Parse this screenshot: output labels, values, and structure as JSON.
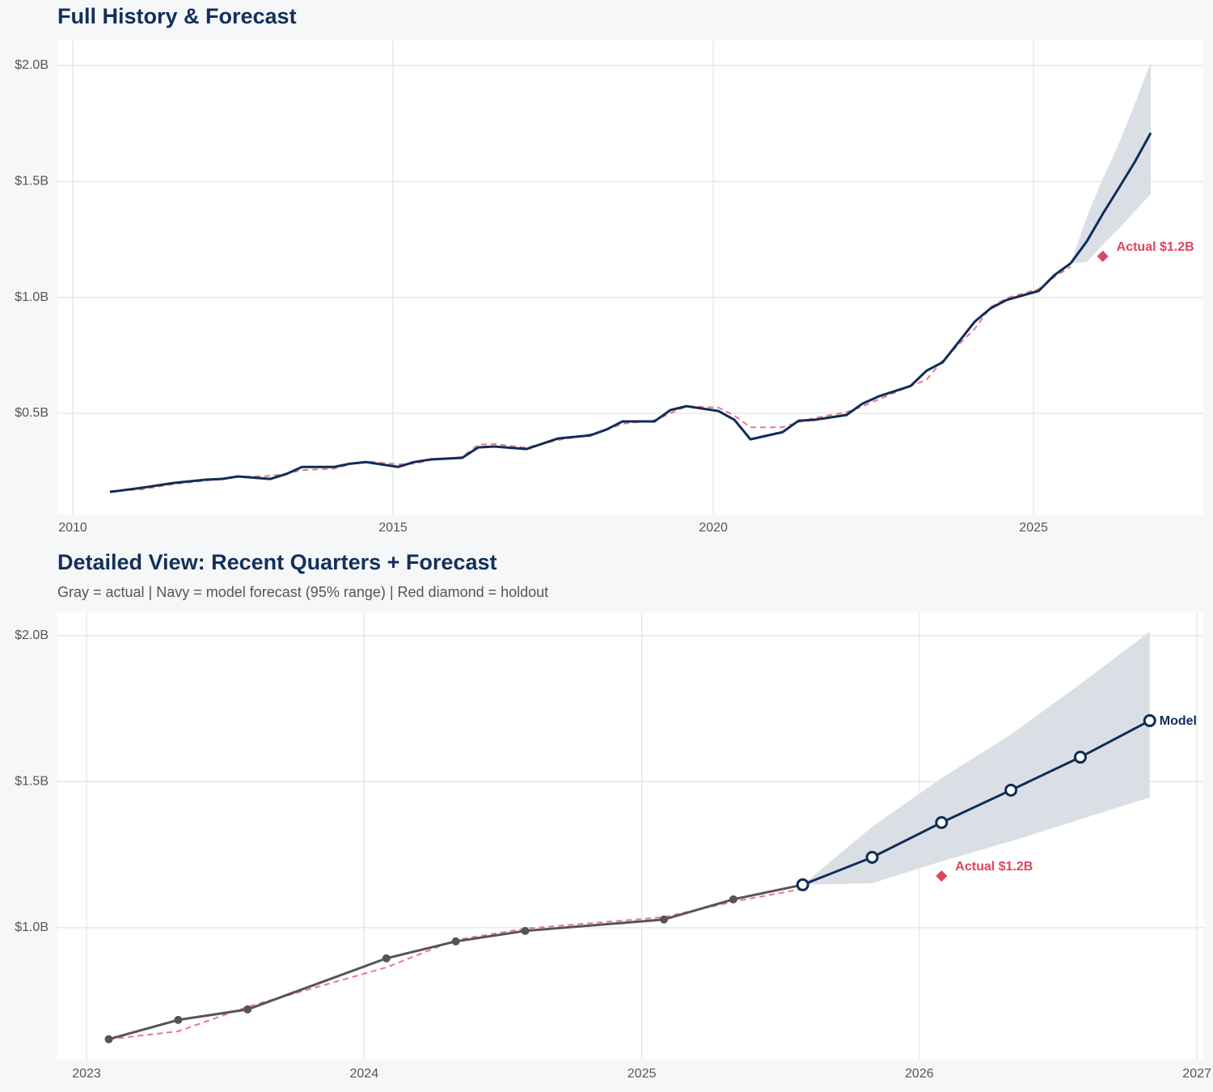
{
  "chart_data": [
    {
      "type": "line",
      "title": "Full History & Forecast",
      "xlim": [
        2009.76,
        2027.65
      ],
      "ylim": [
        0.064,
        2.108
      ],
      "xticks": [
        2010,
        2015,
        2020,
        2025
      ],
      "yticks": [
        {
          "value": 0.5,
          "label": "$0.5B"
        },
        {
          "value": 1.0,
          "label": "$1.0B"
        },
        {
          "value": 1.5,
          "label": "$1.5B"
        },
        {
          "value": 2.0,
          "label": "$2.0B"
        }
      ],
      "grid": true,
      "band": {
        "color": "#dadfe6",
        "x": [
          2025.58,
          2025.83,
          2026.08,
          2026.33,
          2026.58,
          2026.83
        ],
        "upper": [
          1.147,
          1.346,
          1.512,
          1.662,
          1.834,
          2.014
        ],
        "lower": [
          1.147,
          1.152,
          1.227,
          1.296,
          1.371,
          1.446
        ]
      },
      "series": [
        {
          "color": "#e8788a",
          "style": "dashed",
          "x": [
            2010.58,
            2011.08,
            2011.58,
            2012.08,
            2012.33,
            2012.58,
            2013.08,
            2013.33,
            2013.58,
            2014.08,
            2014.33,
            2014.58,
            2015.08,
            2015.33,
            2015.58,
            2016.08,
            2016.33,
            2016.58,
            2017.08,
            2017.58,
            2018.08,
            2018.33,
            2018.58,
            2019.08,
            2019.33,
            2019.58,
            2020.08,
            2020.33,
            2020.58,
            2021.08,
            2021.33,
            2021.58,
            2022.08,
            2022.33,
            2022.58,
            2023.08,
            2023.33,
            2023.58,
            2024.08,
            2024.33,
            2024.58,
            2025.08,
            2025.33,
            2025.58
          ],
          "values": [
            0.165,
            0.172,
            0.195,
            0.21,
            0.22,
            0.226,
            0.23,
            0.24,
            0.255,
            0.262,
            0.28,
            0.293,
            0.28,
            0.283,
            0.298,
            0.312,
            0.365,
            0.368,
            0.352,
            0.385,
            0.41,
            0.428,
            0.455,
            0.47,
            0.5,
            0.53,
            0.525,
            0.49,
            0.44,
            0.44,
            0.462,
            0.48,
            0.505,
            0.53,
            0.56,
            0.618,
            0.645,
            0.729,
            0.864,
            0.958,
            0.997,
            1.036,
            1.089,
            1.133
          ]
        },
        {
          "color": "#0f2d57",
          "style": "solid",
          "x": [
            2010.58,
            2011.08,
            2011.58,
            2012.08,
            2012.33,
            2012.58,
            2013.08,
            2013.33,
            2013.58,
            2014.08,
            2014.33,
            2014.58,
            2015.08,
            2015.33,
            2015.58,
            2016.08,
            2016.33,
            2016.58,
            2017.08,
            2017.58,
            2018.08,
            2018.33,
            2018.58,
            2019.08,
            2019.33,
            2019.58,
            2020.08,
            2020.33,
            2020.58,
            2021.08,
            2021.33,
            2021.58,
            2022.08,
            2022.33,
            2022.58,
            2023.08,
            2023.33,
            2023.58,
            2024.08,
            2024.33,
            2024.58,
            2025.08,
            2025.33,
            2025.58
          ],
          "values": [
            0.161,
            0.179,
            0.2,
            0.214,
            0.217,
            0.228,
            0.217,
            0.238,
            0.269,
            0.269,
            0.283,
            0.29,
            0.269,
            0.29,
            0.301,
            0.308,
            0.353,
            0.357,
            0.346,
            0.392,
            0.405,
            0.43,
            0.465,
            0.465,
            0.514,
            0.531,
            0.51,
            0.472,
            0.388,
            0.419,
            0.468,
            0.472,
            0.493,
            0.542,
            0.573,
            0.618,
            0.684,
            0.72,
            0.895,
            0.953,
            0.989,
            1.028,
            1.097,
            1.147
          ]
        },
        {
          "color": "#0f2d57",
          "style": "solid",
          "x": [
            2025.58,
            2025.83,
            2026.08,
            2026.33,
            2026.58,
            2026.83
          ],
          "values": [
            1.147,
            1.241,
            1.36,
            1.471,
            1.584,
            1.709
          ]
        }
      ],
      "annotations": [
        {
          "x": 2026.08,
          "y": 1.177,
          "text": "Actual $1.2B",
          "color": "#e0435f"
        }
      ]
    },
    {
      "type": "line",
      "title": "Detailed View: Recent Quarters + Forecast",
      "subtitle": "Gray = actual  |  Navy = model forecast (95% range)  |  Red diamond = holdout",
      "xlim": [
        2022.895,
        2027.023
      ],
      "ylim": [
        0.548,
        2.08
      ],
      "xticks": [
        2023,
        2024,
        2025,
        2026,
        2027
      ],
      "yticks": [
        {
          "value": 1.0,
          "label": "$1.0B"
        },
        {
          "value": 1.5,
          "label": "$1.5B"
        },
        {
          "value": 2.0,
          "label": "$2.0B"
        }
      ],
      "grid": true,
      "band": {
        "color": "#dadfe6",
        "x": [
          2025.58,
          2025.83,
          2026.08,
          2026.33,
          2026.58,
          2026.83
        ],
        "upper": [
          1.147,
          1.346,
          1.512,
          1.662,
          1.834,
          2.014
        ],
        "lower": [
          1.147,
          1.152,
          1.227,
          1.296,
          1.371,
          1.446
        ]
      },
      "series": [
        {
          "color": "#e8788a",
          "style": "dashed",
          "x": [
            2023.08,
            2023.33,
            2023.58,
            2024.08,
            2024.33,
            2024.58,
            2025.08,
            2025.33,
            2025.58
          ],
          "values": [
            0.618,
            0.645,
            0.729,
            0.864,
            0.958,
            0.997,
            1.036,
            1.089,
            1.133
          ]
        },
        {
          "color": "#555555",
          "style": "solid",
          "markers": "filled",
          "x": [
            2023.08,
            2023.33,
            2023.58,
            2024.08,
            2024.33,
            2024.58,
            2025.08,
            2025.33,
            2025.58
          ],
          "values": [
            0.618,
            0.684,
            0.72,
            0.895,
            0.953,
            0.989,
            1.028,
            1.097,
            1.147
          ]
        },
        {
          "color": "#0f2d57",
          "style": "solid",
          "markers": "open",
          "end_label": "Model",
          "x": [
            2025.58,
            2025.83,
            2026.08,
            2026.33,
            2026.58,
            2026.83
          ],
          "values": [
            1.147,
            1.241,
            1.36,
            1.471,
            1.584,
            1.709
          ]
        }
      ],
      "annotations": [
        {
          "x": 2026.08,
          "y": 1.177,
          "text": "Actual $1.2B",
          "color": "#e0435f"
        }
      ]
    }
  ]
}
